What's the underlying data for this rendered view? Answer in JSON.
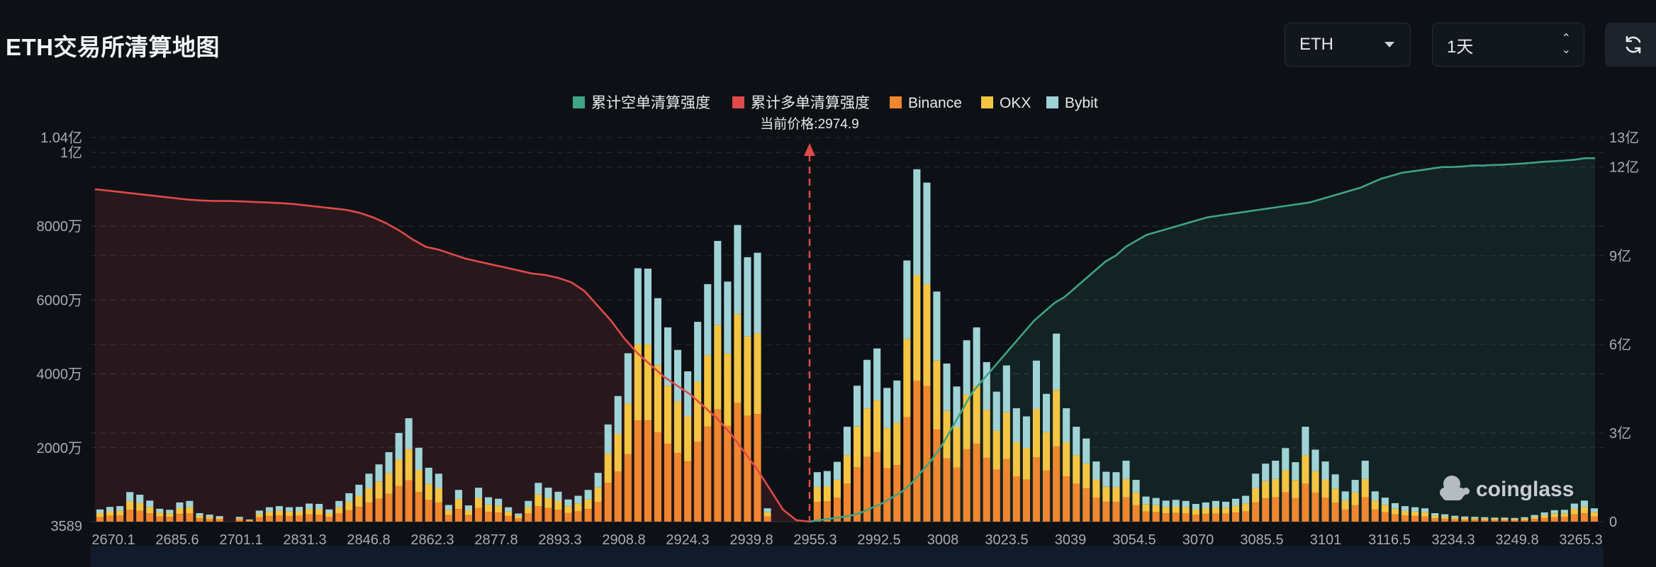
{
  "header": {
    "title": "ETH交易所清算地图",
    "coin_select": "ETH",
    "period_select": "1天"
  },
  "watermark": "coinglass",
  "colors": {
    "short_cum": "#3fa386",
    "long_cum": "#e04a4a",
    "binance": "#f0862f",
    "okx": "#f4c542",
    "bybit": "#9fd3d6",
    "current_price": "#e04a4a"
  },
  "chart_data": {
    "type": "bar",
    "legend": [
      "累计空单清算强度",
      "累计多单清算强度",
      "Binance",
      "OKX",
      "Bybit"
    ],
    "current_price_label": "当前价格:2974.9",
    "current_price": 2974.9,
    "x_tick_labels": [
      "2670.1",
      "2685.6",
      "2701.1",
      "2831.3",
      "2846.8",
      "2862.3",
      "2877.8",
      "2893.3",
      "2908.8",
      "2924.3",
      "2939.8",
      "2955.3",
      "2992.5",
      "3008",
      "3023.5",
      "3039",
      "3054.5",
      "3070",
      "3085.5",
      "3101",
      "3116.5",
      "3234.3",
      "3249.8",
      "3265.3"
    ],
    "y_left_ticks": [
      "3589",
      "2000万",
      "4000万",
      "6000万",
      "8000万",
      "1亿",
      "1.04亿"
    ],
    "y_left_tick_values": [
      0,
      2000,
      4000,
      6000,
      8000,
      10000,
      10400
    ],
    "y_left_range": [
      0,
      10400
    ],
    "y_right_ticks": [
      "0",
      "3亿",
      "6亿",
      "9亿",
      "12亿",
      "13亿"
    ],
    "y_right_tick_values": [
      0,
      3,
      6,
      9,
      12,
      13
    ],
    "y_right_range": [
      0,
      13
    ],
    "bar_totals": [
      330,
      400,
      420,
      800,
      730,
      570,
      350,
      320,
      520,
      560,
      230,
      190,
      150,
      0,
      130,
      60,
      300,
      390,
      420,
      390,
      400,
      490,
      480,
      330,
      560,
      770,
      1000,
      1300,
      1550,
      1880,
      2400,
      2800,
      2000,
      1460,
      1300,
      450,
      860,
      440,
      920,
      660,
      620,
      390,
      220,
      560,
      1050,
      920,
      810,
      600,
      700,
      860,
      1320,
      2630,
      3400,
      4560,
      6860,
      6850,
      6050,
      5260,
      4650,
      4070,
      5410,
      6430,
      7600,
      6500,
      8030,
      7160,
      7280,
      360,
      0,
      0,
      0,
      0,
      1340,
      1370,
      1620,
      2570,
      3680,
      4380,
      4690,
      3620,
      3820,
      7070,
      9540,
      9180,
      6230,
      4280,
      3660,
      4910,
      5260,
      4320,
      3520,
      4230,
      3070,
      2850,
      4360,
      3460,
      5090,
      3070,
      2570,
      2250,
      1630,
      1350,
      1340,
      1650,
      1130,
      680,
      640,
      570,
      590,
      560,
      480,
      520,
      560,
      540,
      620,
      700,
      1300,
      1570,
      1650,
      1990,
      1610,
      2570,
      1950,
      1630,
      1280,
      820,
      1130,
      1650,
      820,
      650,
      500,
      420,
      390,
      360,
      230,
      200,
      160,
      140,
      130,
      120,
      110,
      110,
      100,
      120,
      180,
      250,
      310,
      320,
      490,
      570,
      360
    ],
    "short_cum": [
      0,
      0.05,
      0.1,
      0.15,
      0.2,
      0.3,
      0.45,
      0.6,
      0.8,
      1.0,
      1.3,
      1.7,
      2.1,
      2.6,
      3.2,
      3.8,
      4.4,
      4.8,
      5.2,
      5.6,
      6.0,
      6.4,
      6.8,
      7.1,
      7.4,
      7.6,
      7.9,
      8.2,
      8.5,
      8.8,
      9.0,
      9.3,
      9.5,
      9.7,
      9.8,
      9.9,
      10.0,
      10.1,
      10.2,
      10.3,
      10.35,
      10.4,
      10.45,
      10.5,
      10.55,
      10.6,
      10.65,
      10.7,
      10.75,
      10.8,
      10.9,
      11.0,
      11.1,
      11.2,
      11.3,
      11.45,
      11.6,
      11.7,
      11.8,
      11.85,
      11.9,
      11.95,
      12.0,
      12.0,
      12.02,
      12.05,
      12.05,
      12.07,
      12.08,
      12.1,
      12.12,
      12.15,
      12.18,
      12.2,
      12.22,
      12.25,
      12.3,
      12.3
    ],
    "long_cum": [
      11.25,
      11.2,
      11.15,
      11.1,
      11.05,
      11.0,
      10.95,
      10.9,
      10.87,
      10.85,
      10.85,
      10.84,
      10.82,
      10.8,
      10.78,
      10.75,
      10.7,
      10.65,
      10.6,
      10.55,
      10.45,
      10.3,
      10.1,
      9.85,
      9.55,
      9.3,
      9.2,
      9.05,
      8.9,
      8.8,
      8.7,
      8.6,
      8.5,
      8.4,
      8.35,
      8.25,
      8.1,
      7.8,
      7.3,
      6.8,
      6.2,
      5.7,
      5.3,
      4.9,
      4.6,
      4.3,
      3.9,
      3.5,
      3.0,
      2.4,
      1.8,
      1.1,
      0.4,
      0.05,
      0.0
    ]
  }
}
